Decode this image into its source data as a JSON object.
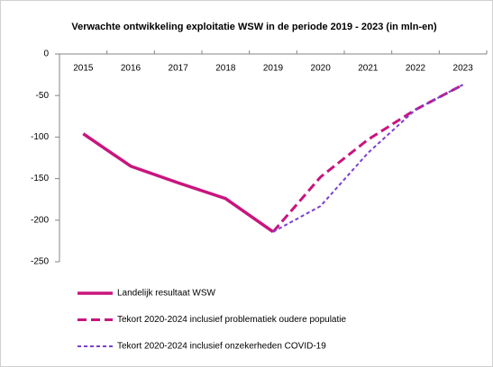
{
  "chart_data": {
    "type": "line",
    "title": "Verwachte ontwikkeling exploitatie WSW in de periode 2019 - 2023 (in mln-en)",
    "categories": [
      "2015",
      "2016",
      "2017",
      "2018",
      "2019",
      "2020",
      "2021",
      "2022",
      "2023"
    ],
    "series": [
      {
        "name": "Landelijk resultaat WSW",
        "color": "#c8157e",
        "dash": "solid",
        "values": [
          -96,
          -135,
          -155,
          -174,
          -214,
          null,
          null,
          null,
          null
        ]
      },
      {
        "name": "Tekort 2020-2024 inclusief problematiek oudere populatie",
        "color": "#c8157e",
        "dash": "dashed",
        "values": [
          null,
          null,
          null,
          null,
          -214,
          -148,
          -103,
          -67,
          -37
        ]
      },
      {
        "name": "Tekort 2020-2024 inclusief onzekerheden COVID-19",
        "color": "#7b3fd1",
        "dash": "dotted",
        "values": [
          null,
          null,
          null,
          null,
          -214,
          -183,
          -119,
          -67,
          -37
        ]
      }
    ],
    "ylim": [
      -250,
      0
    ],
    "yticks": [
      0,
      -50,
      -100,
      -150,
      -200,
      -250
    ],
    "grid": false
  }
}
